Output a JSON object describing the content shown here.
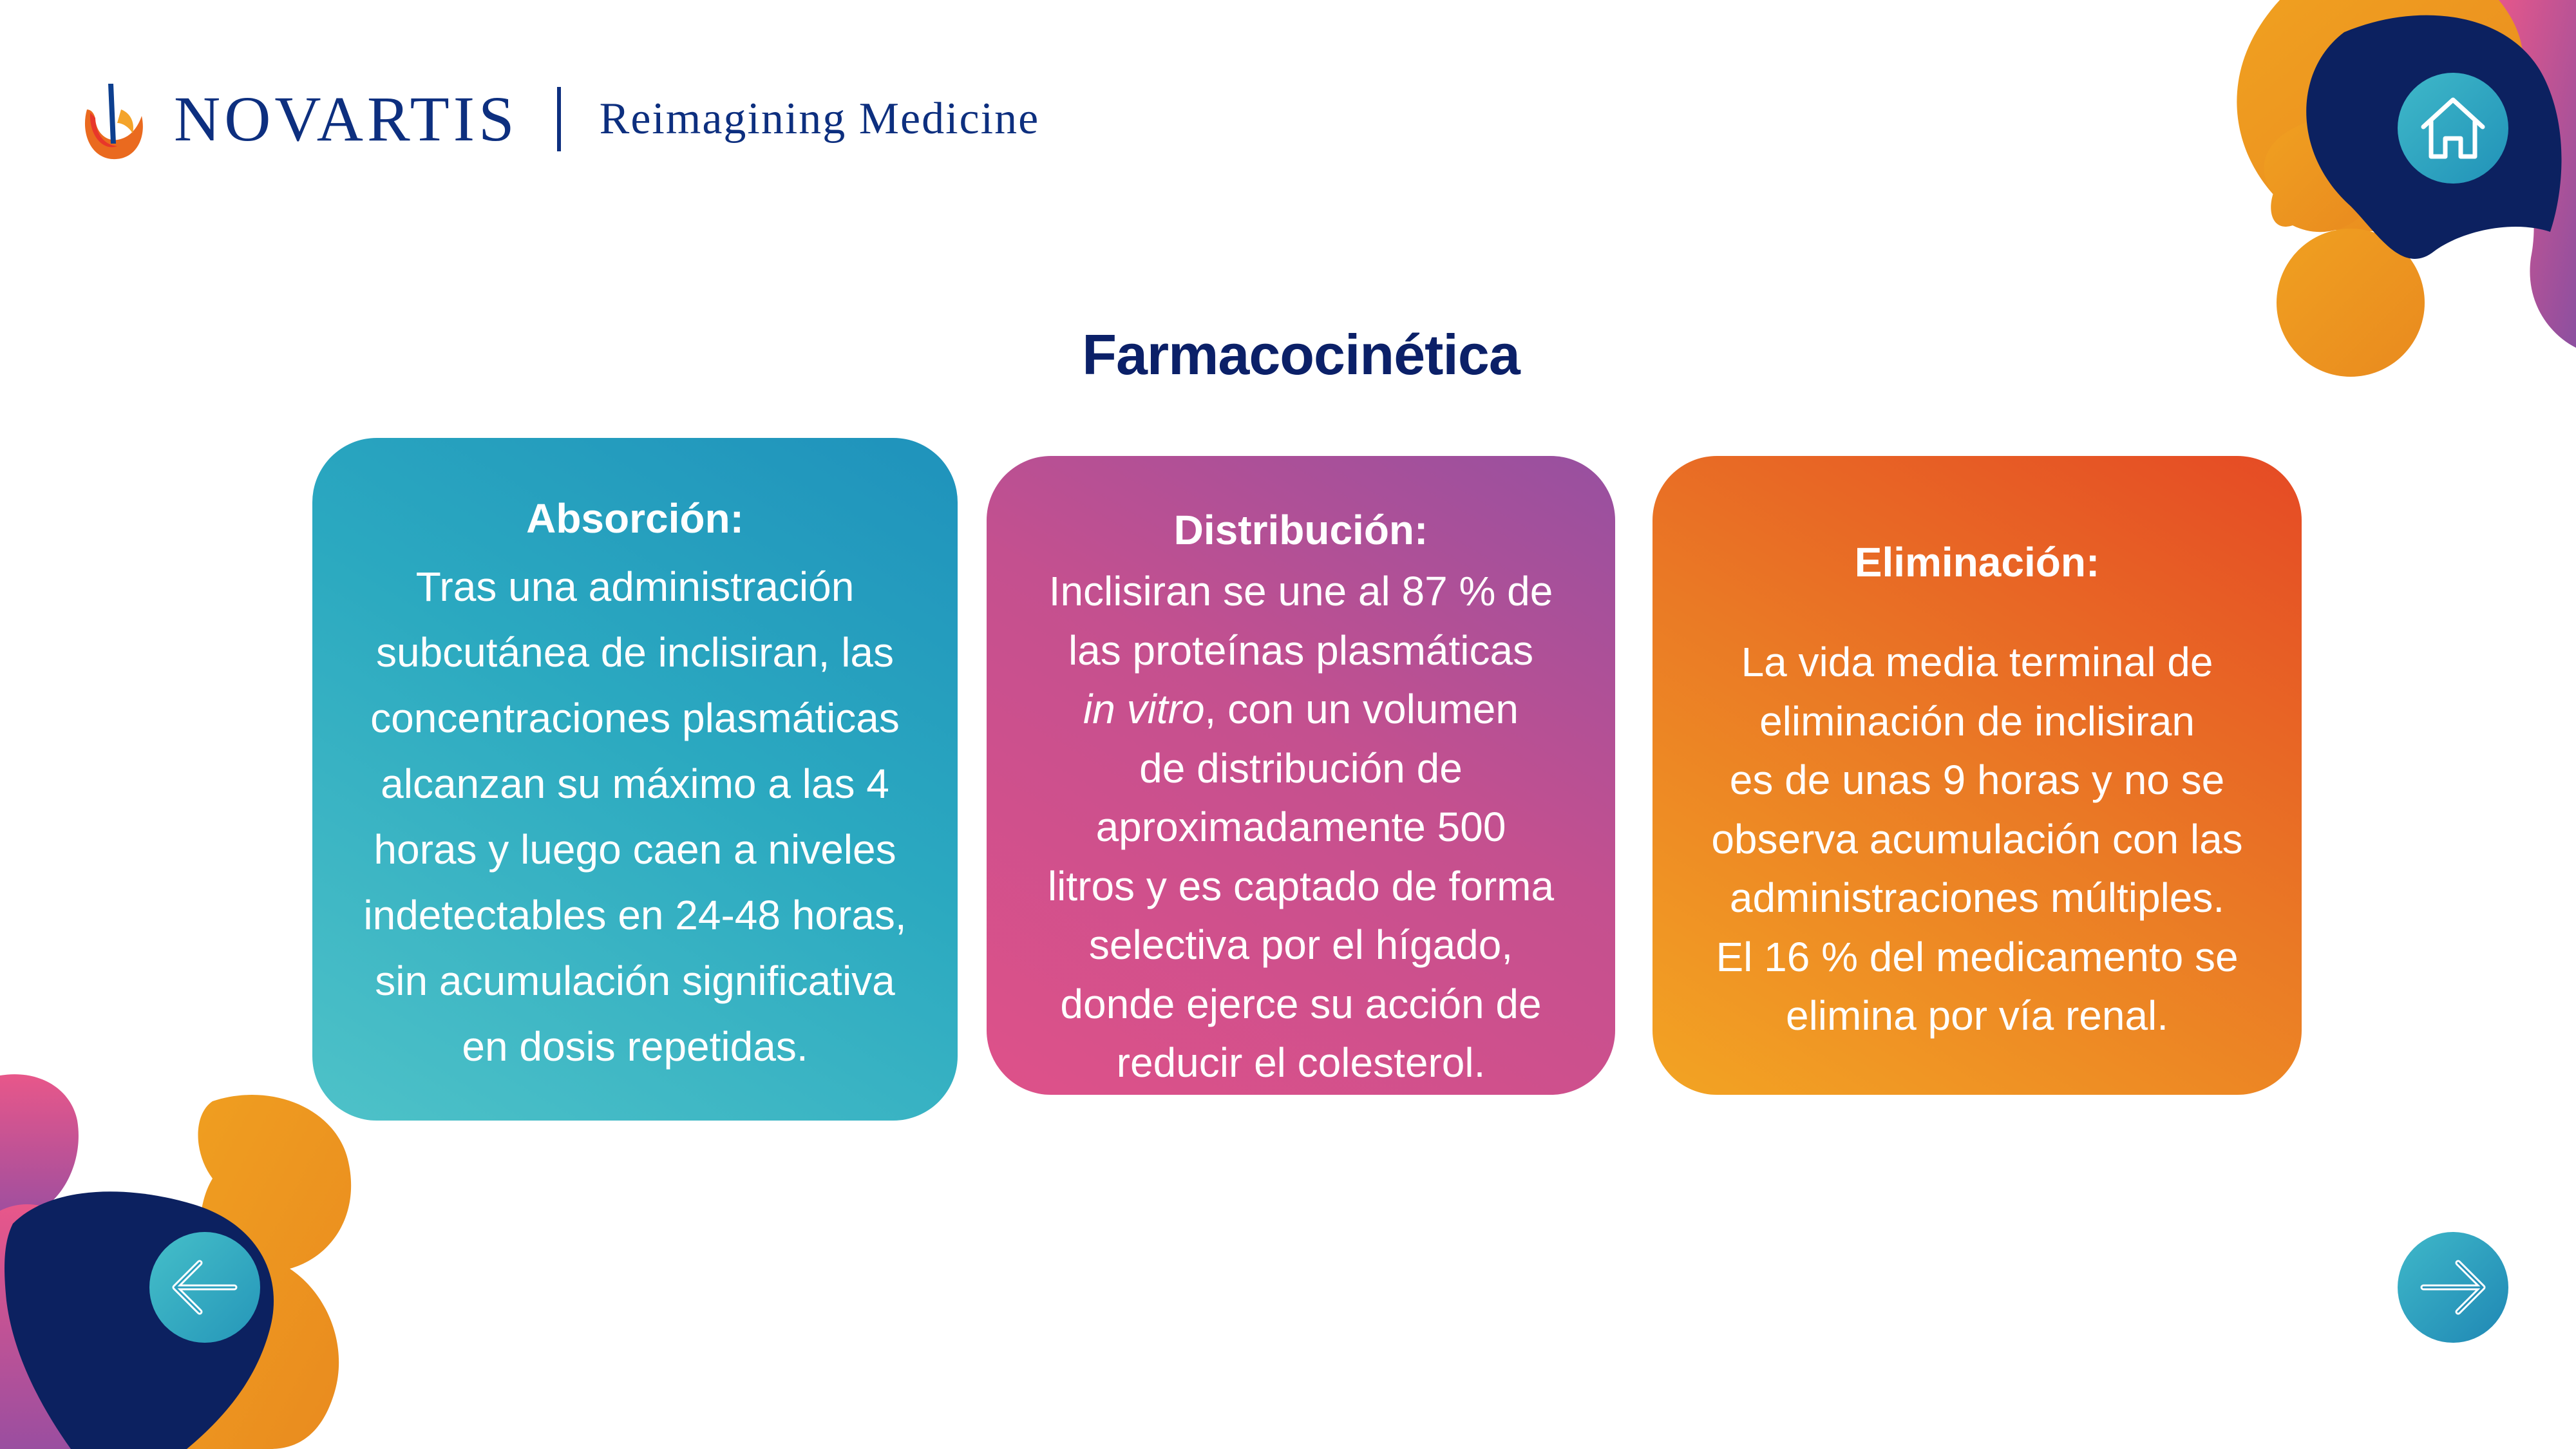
{
  "brand": {
    "name": "NOVARTIS",
    "tagline": "Reimagining Medicine",
    "logo_icon": "novartis-flame-icon"
  },
  "page": {
    "title": "Farmacocinética"
  },
  "cards": {
    "absorcion": {
      "heading": "Absorción:",
      "lines": [
        "Tras una administración",
        "subcutánea de inclisiran, las",
        "concentraciones plasmáticas",
        "alcanzan su máximo a las 4",
        "horas y luego caen a niveles",
        "indetectables en 24-48 horas,",
        "sin acumulación significativa",
        "en dosis repetidas."
      ]
    },
    "distribucion": {
      "heading": "Distribución:",
      "line_1": "Inclisiran se une al 87 % de",
      "line_2": "las proteínas plasmáticas",
      "line_3_em": "in vitro",
      "line_3_rest": ", con un volumen",
      "line_4": "de distribución de",
      "line_5": "aproximadamente 500",
      "line_6": "litros y es captado de forma",
      "line_7": "selectiva por el hígado,",
      "line_8": "donde ejerce su acción de",
      "line_9": "reducir el colesterol."
    },
    "eliminacion": {
      "heading": "Eliminación:",
      "lines": [
        "La vida media terminal de",
        "eliminación de inclisiran",
        "es de unas 9 horas y no se",
        "observa acumulación con las",
        "administraciones múltiples.",
        "El 16 % del medicamento se",
        "elimina por vía renal."
      ]
    }
  },
  "nav": {
    "home_icon": "home-icon",
    "back_icon": "arrow-left-icon",
    "next_icon": "arrow-right-icon"
  },
  "colors": {
    "brand_blue": "#0d2f7f",
    "title_navy": "#0b2068",
    "teal": "#2ba9c0",
    "magenta": "#c4508f",
    "orange": "#ea7a25",
    "blob_navy": "#0c2160",
    "blob_orange": "#f0a020",
    "blob_pink": "#e8578a"
  }
}
